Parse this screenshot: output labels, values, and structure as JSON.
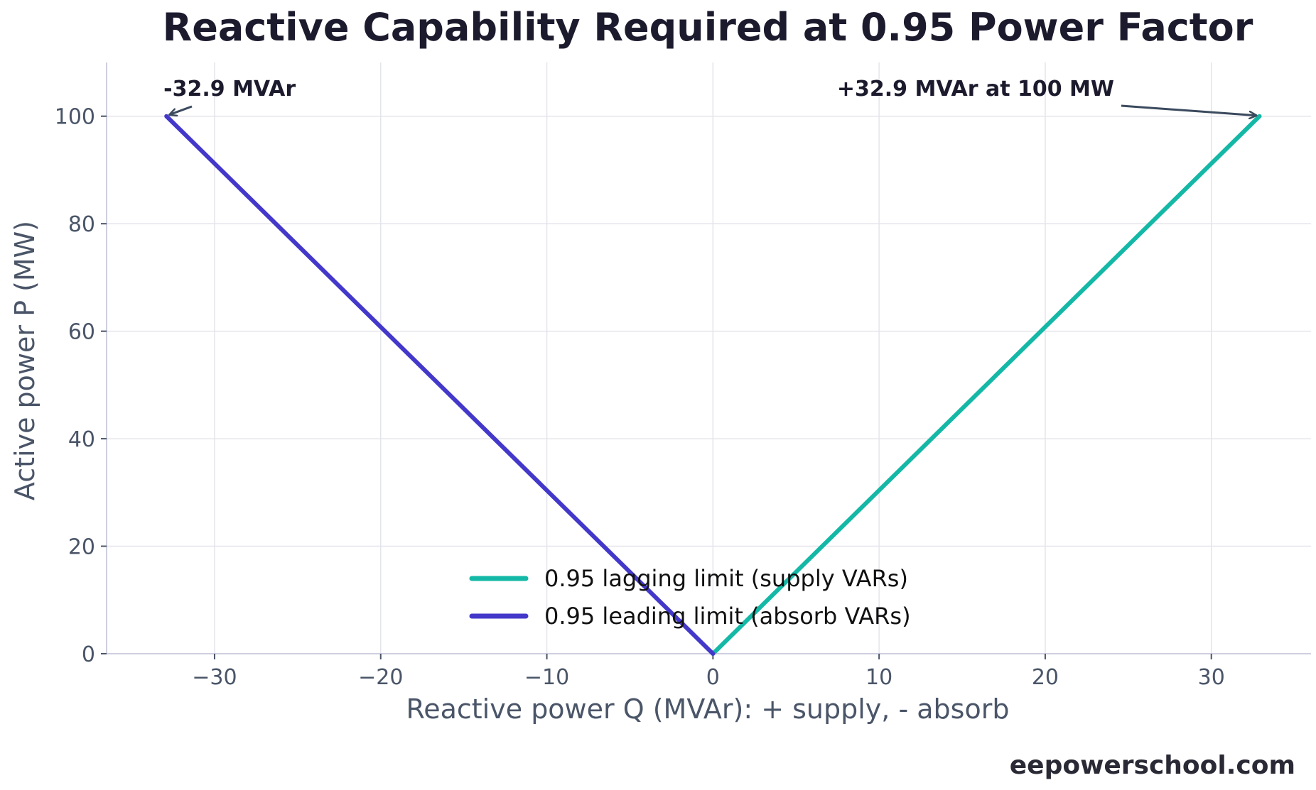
{
  "chart_data": {
    "type": "line",
    "title": "Reactive Capability Required at 0.95 Power Factor",
    "xlabel": "Reactive power Q (MVAr): + supply, - absorb",
    "ylabel": "Active power P (MW)",
    "xlim": [
      -36.5,
      36.0
    ],
    "ylim": [
      0,
      110
    ],
    "xticks": [
      -30,
      -20,
      -10,
      0,
      10,
      20,
      30
    ],
    "xtick_labels": [
      "−30",
      "−20",
      "−10",
      "0",
      "10",
      "20",
      "30"
    ],
    "yticks": [
      0,
      20,
      40,
      60,
      80,
      100
    ],
    "ytick_labels": [
      "0",
      "20",
      "40",
      "60",
      "80",
      "100"
    ],
    "grid": true,
    "legend_position": "bottom-center",
    "series": [
      {
        "name": "0.95 lagging limit (supply VARs)",
        "color": "#14b8a6",
        "x": [
          0,
          32.9
        ],
        "y": [
          0,
          100
        ]
      },
      {
        "name": "0.95 leading limit (absorb VARs)",
        "color": "#4338ca",
        "x": [
          0,
          -32.9
        ],
        "y": [
          0,
          100
        ]
      }
    ],
    "annotations": [
      {
        "text": "-32.9 MVAr",
        "x": -32.9,
        "y": 100
      },
      {
        "text": "+32.9 MVAr at 100 MW",
        "x": 32.9,
        "y": 100
      }
    ]
  },
  "credit": "eepowerschool.com"
}
